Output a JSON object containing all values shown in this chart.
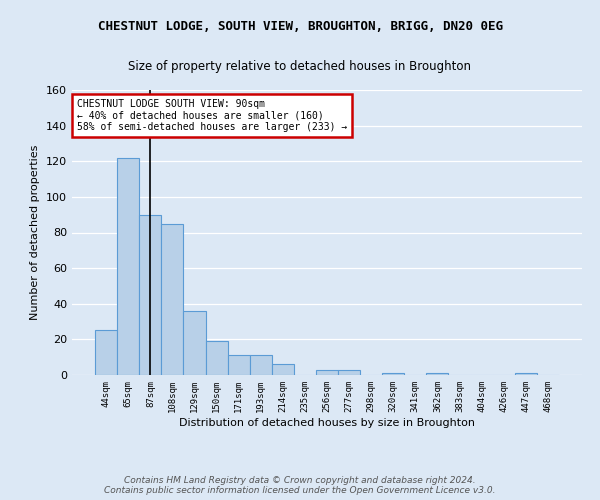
{
  "title": "CHESTNUT LODGE, SOUTH VIEW, BROUGHTON, BRIGG, DN20 0EG",
  "subtitle": "Size of property relative to detached houses in Broughton",
  "xlabel": "Distribution of detached houses by size in Broughton",
  "ylabel": "Number of detached properties",
  "categories": [
    "44sqm",
    "65sqm",
    "87sqm",
    "108sqm",
    "129sqm",
    "150sqm",
    "171sqm",
    "193sqm",
    "214sqm",
    "235sqm",
    "256sqm",
    "277sqm",
    "298sqm",
    "320sqm",
    "341sqm",
    "362sqm",
    "383sqm",
    "404sqm",
    "426sqm",
    "447sqm",
    "468sqm"
  ],
  "values": [
    25,
    122,
    90,
    85,
    36,
    19,
    11,
    11,
    6,
    0,
    3,
    3,
    0,
    1,
    0,
    1,
    0,
    0,
    0,
    1,
    0
  ],
  "bar_color": "#b8d0e8",
  "bar_edge_color": "#5b9bd5",
  "vline_x_index": 2,
  "vline_color": "#000000",
  "annotation_text": "CHESTNUT LODGE SOUTH VIEW: 90sqm\n← 40% of detached houses are smaller (160)\n58% of semi-detached houses are larger (233) →",
  "annotation_box_color": "#ffffff",
  "annotation_box_edge": "#cc0000",
  "ylim": [
    0,
    160
  ],
  "yticks": [
    0,
    20,
    40,
    60,
    80,
    100,
    120,
    140,
    160
  ],
  "footer_text": "Contains HM Land Registry data © Crown copyright and database right 2024.\nContains public sector information licensed under the Open Government Licence v3.0.",
  "bg_color": "#dce8f5",
  "grid_color": "#ffffff",
  "title_fontsize": 9,
  "subtitle_fontsize": 8.5
}
